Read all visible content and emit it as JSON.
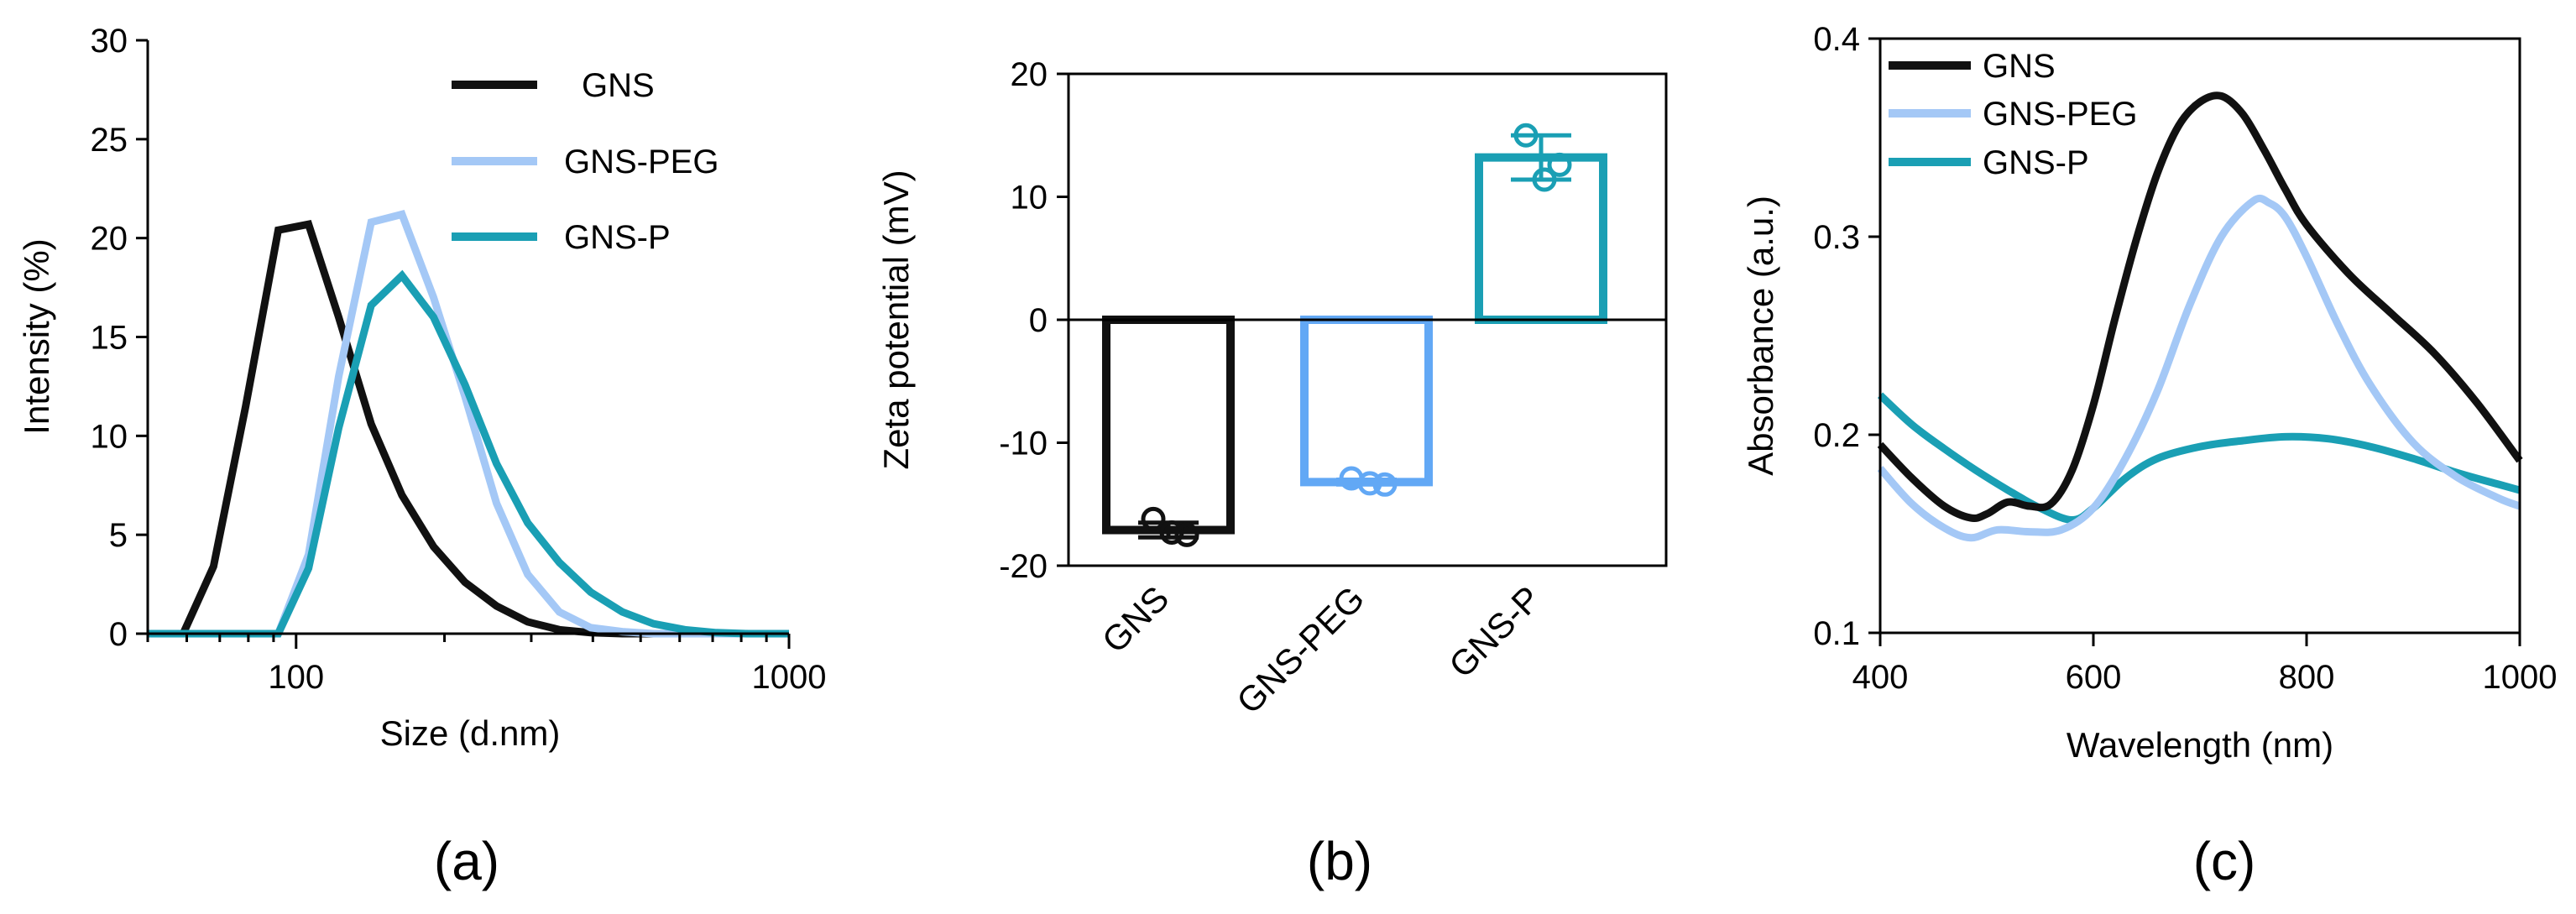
{
  "colors": {
    "gns": "#111111",
    "gns_peg": "#a4c8f6",
    "gns_peg_bar": "#62a8f5",
    "gns_p": "#1a9fb4"
  },
  "chart_data": [
    {
      "panel_label": "(a)",
      "type": "line",
      "xscale": "log",
      "xlim": [
        50,
        1000
      ],
      "ylim": [
        0,
        30
      ],
      "xticks": [
        100,
        1000
      ],
      "xtick_labels": [
        "100",
        "1000"
      ],
      "yticks": [
        0,
        5,
        10,
        15,
        20,
        25,
        30
      ],
      "ytick_labels": [
        "0",
        "5",
        "10",
        "15",
        "20",
        "25",
        "30"
      ],
      "xlabel": "Size (d.nm)",
      "ylabel": "Intensity (%)",
      "legend_position": "top-right",
      "series": [
        {
          "name": "GNS",
          "color_key": "gns",
          "x": [
            50,
            59,
            68,
            79,
            92,
            106,
            122,
            142,
            164,
            190,
            220,
            255,
            295,
            342,
            396,
            459,
            531,
            615,
            712,
            825,
            955,
            1000
          ],
          "y": [
            0,
            0,
            3.4,
            11.5,
            20.4,
            20.7,
            16.0,
            10.6,
            7.0,
            4.4,
            2.6,
            1.4,
            0.6,
            0.2,
            0.05,
            0,
            0,
            0,
            0,
            0,
            0,
            0
          ]
        },
        {
          "name": "GNS-PEG",
          "color_key": "gns_peg",
          "x": [
            50,
            92,
            106,
            122,
            142,
            164,
            190,
            220,
            255,
            295,
            342,
            396,
            459,
            531,
            615,
            712,
            825,
            955,
            1000
          ],
          "y": [
            0,
            0,
            4.0,
            13.0,
            20.8,
            21.2,
            17.0,
            12.0,
            6.6,
            3.0,
            1.1,
            0.3,
            0.1,
            0,
            0,
            0,
            0,
            0,
            0
          ]
        },
        {
          "name": "GNS-P",
          "color_key": "gns_p",
          "x": [
            50,
            92,
            106,
            122,
            142,
            164,
            190,
            220,
            255,
            295,
            342,
            396,
            459,
            531,
            615,
            712,
            825,
            955,
            1000
          ],
          "y": [
            0,
            0,
            3.3,
            10.4,
            16.6,
            18.1,
            16.0,
            12.6,
            8.6,
            5.6,
            3.6,
            2.1,
            1.1,
            0.5,
            0.2,
            0.05,
            0,
            0,
            0
          ]
        }
      ]
    },
    {
      "panel_label": "(b)",
      "type": "bar",
      "categories": [
        "GNS",
        "GNS-PEG",
        "GNS-P"
      ],
      "ylim": [
        -20,
        20
      ],
      "yticks": [
        -20,
        -10,
        0,
        10,
        20
      ],
      "ytick_labels": [
        "-20",
        "-10",
        "0",
        "10",
        "20"
      ],
      "xlabel": "",
      "ylabel": "Zeta potential (mV)",
      "bars": [
        {
          "category": "GNS",
          "value": -17.1,
          "error": 0.6,
          "color_key": "gns",
          "points": [
            -16.2,
            -17.3,
            -17.5
          ]
        },
        {
          "category": "GNS-PEG",
          "value": -13.2,
          "error": 0.2,
          "color_key": "gns_peg_bar",
          "points": [
            -12.9,
            -13.3,
            -13.4
          ]
        },
        {
          "category": "GNS-P",
          "value": 13.2,
          "error": 1.8,
          "color_key": "gns_p",
          "points": [
            15.0,
            11.4,
            12.6
          ]
        }
      ]
    },
    {
      "panel_label": "(c)",
      "type": "line",
      "xlim": [
        400,
        1000
      ],
      "ylim": [
        0.1,
        0.4
      ],
      "xticks": [
        400,
        600,
        800,
        1000
      ],
      "xtick_labels": [
        "400",
        "600",
        "800",
        "1000"
      ],
      "yticks": [
        0.1,
        0.2,
        0.3,
        0.4
      ],
      "ytick_labels": [
        "0.1",
        "0.2",
        "0.3",
        "0.4"
      ],
      "xlabel": "Wavelength (nm)",
      "ylabel": "Absorbance (a.u.)",
      "legend_position": "top-left",
      "series": [
        {
          "name": "GNS",
          "color_key": "gns",
          "x": [
            400,
            430,
            460,
            485,
            500,
            520,
            540,
            560,
            580,
            600,
            620,
            640,
            660,
            680,
            700,
            720,
            740,
            760,
            780,
            800,
            840,
            880,
            920,
            960,
            1000
          ],
          "y": [
            0.195,
            0.178,
            0.164,
            0.158,
            0.16,
            0.166,
            0.164,
            0.165,
            0.182,
            0.215,
            0.258,
            0.298,
            0.332,
            0.356,
            0.368,
            0.371,
            0.362,
            0.344,
            0.324,
            0.306,
            0.281,
            0.261,
            0.241,
            0.216,
            0.187
          ]
        },
        {
          "name": "GNS-PEG",
          "color_key": "gns_peg",
          "x": [
            400,
            430,
            460,
            485,
            510,
            540,
            570,
            600,
            630,
            660,
            690,
            720,
            750,
            765,
            780,
            800,
            830,
            860,
            900,
            940,
            980,
            1000
          ],
          "y": [
            0.183,
            0.165,
            0.153,
            0.148,
            0.152,
            0.151,
            0.152,
            0.163,
            0.188,
            0.222,
            0.265,
            0.3,
            0.318,
            0.317,
            0.31,
            0.29,
            0.255,
            0.225,
            0.196,
            0.179,
            0.168,
            0.164
          ]
        },
        {
          "name": "GNS-P",
          "color_key": "gns_p",
          "x": [
            400,
            430,
            460,
            490,
            520,
            550,
            580,
            600,
            630,
            660,
            700,
            740,
            780,
            820,
            860,
            900,
            940,
            980,
            1000
          ],
          "y": [
            0.22,
            0.205,
            0.193,
            0.182,
            0.172,
            0.163,
            0.157,
            0.163,
            0.178,
            0.188,
            0.194,
            0.197,
            0.199,
            0.198,
            0.194,
            0.188,
            0.181,
            0.175,
            0.172
          ]
        }
      ]
    }
  ]
}
